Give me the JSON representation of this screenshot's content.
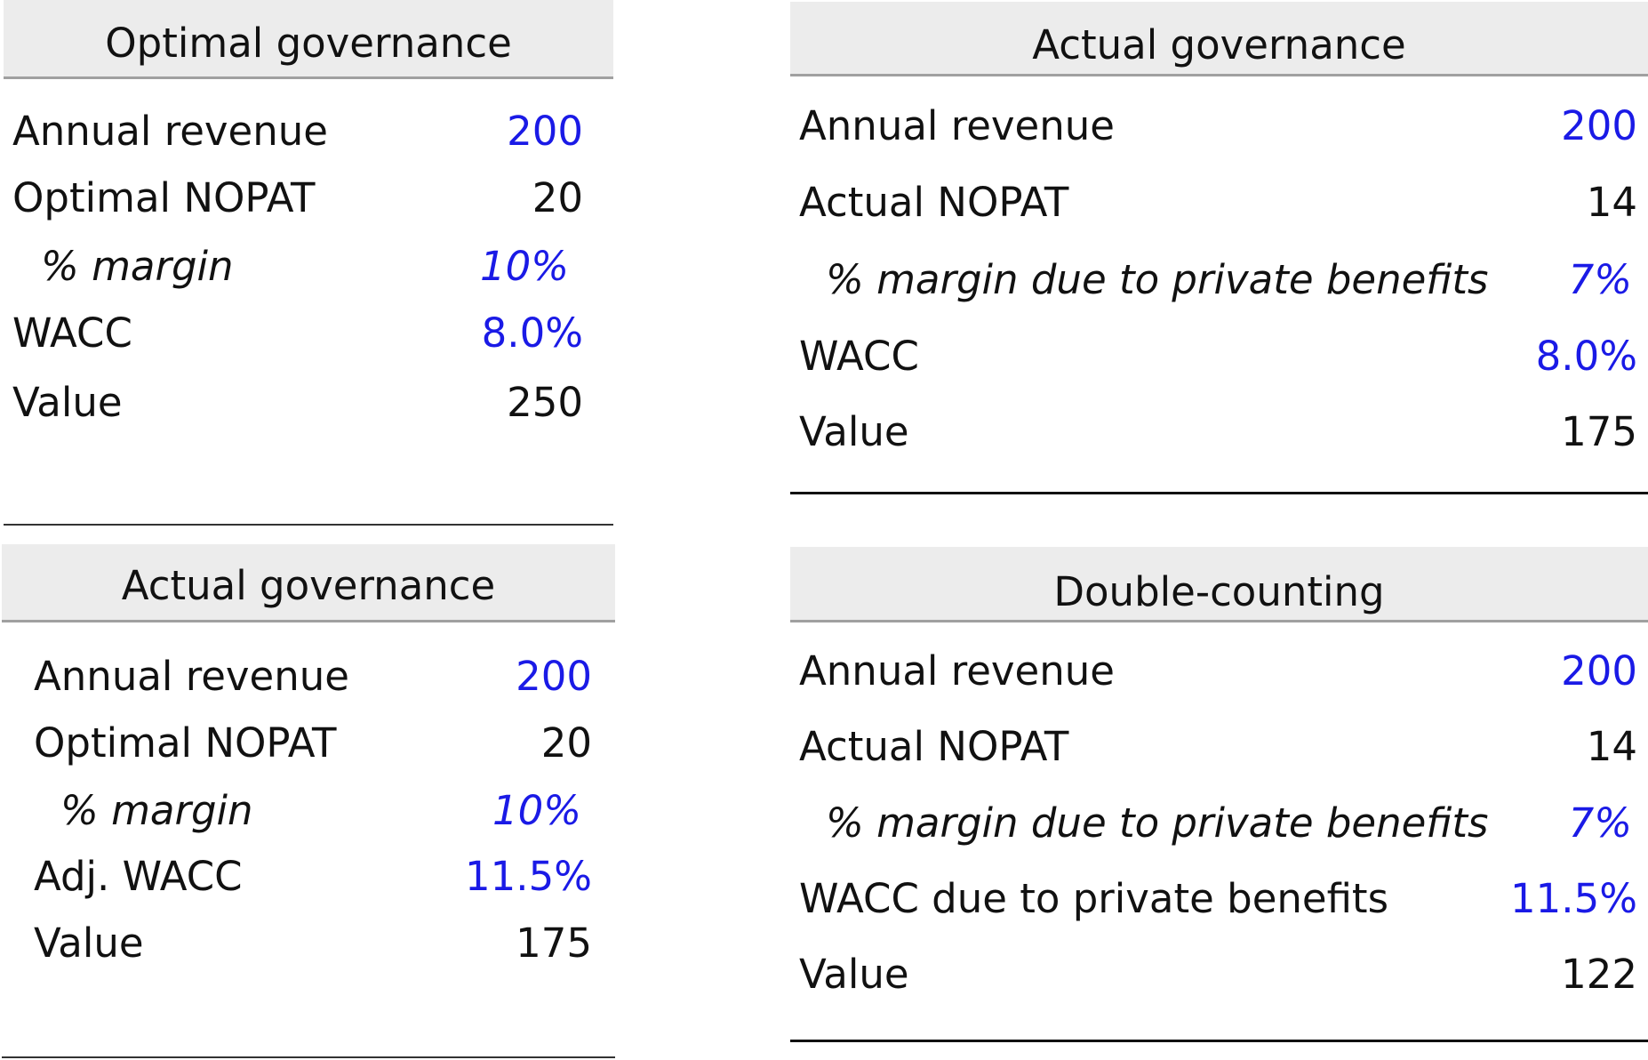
{
  "panels": [
    {
      "title": "Optimal governance",
      "rows": [
        {
          "label": "Annual revenue",
          "value": "200"
        },
        {
          "label": "Optimal NOPAT",
          "value": "20"
        },
        {
          "label": "% margin",
          "value": "10%"
        },
        {
          "label": "WACC",
          "value": "8.0%"
        },
        {
          "label": "Value",
          "value": "250"
        }
      ]
    },
    {
      "title": "Actual governance",
      "rows": [
        {
          "label": "Annual revenue",
          "value": "200"
        },
        {
          "label": "Optimal NOPAT",
          "value": "20"
        },
        {
          "label": "% margin",
          "value": "10%"
        },
        {
          "label": "Adj. WACC",
          "value": "11.5%"
        },
        {
          "label": "Value",
          "value": "175"
        }
      ]
    },
    {
      "title": "Actual governance",
      "rows": [
        {
          "label": "Annual revenue",
          "value": "200"
        },
        {
          "label": "Actual NOPAT",
          "value": "14"
        },
        {
          "label": "% margin due to private benefits",
          "value": "7%"
        },
        {
          "label": "WACC",
          "value": "8.0%"
        },
        {
          "label": "Value",
          "value": "175"
        }
      ]
    },
    {
      "title": "Double-counting",
      "rows": [
        {
          "label": "Annual revenue",
          "value": "200"
        },
        {
          "label": "Actual NOPAT",
          "value": "14"
        },
        {
          "label": "% margin due to private benefits",
          "value": "7%"
        },
        {
          "label": "WACC due to private benefits",
          "value": "11.5%"
        },
        {
          "label": "Value",
          "value": "122"
        }
      ]
    }
  ],
  "colors": {
    "input_value": "#1a1ae6",
    "computed_value": "#111111",
    "header_background": "#ececec"
  }
}
